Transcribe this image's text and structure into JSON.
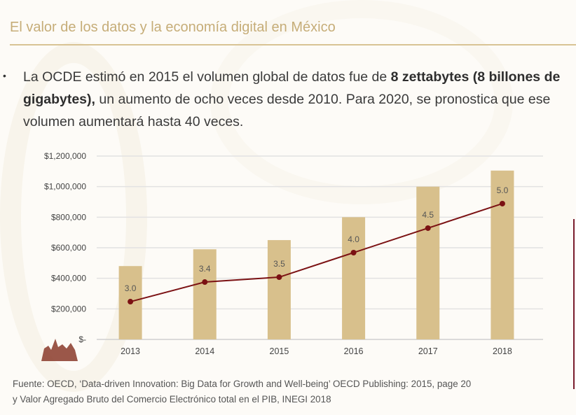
{
  "slide": {
    "title": "El valor de los datos y la economía digital en México",
    "body": {
      "part1": "La OCDE estimó en 2015 el volumen global de datos fue de ",
      "bold": "8 zettabytes (8 billones de gigabytes),",
      "part2": " un aumento de ocho veces desde 2010. Para 2020, se pronostica que ese volumen aumentará hasta 40 veces."
    },
    "source_line1": "Fuente: OECD, ‘Data-driven Innovation: Big Data for Growth and Well-being’ OECD Publishing: 2015, page 20",
    "source_line2": "y Valor Agregado Bruto del Comercio Electrónico total en el PIB, INEGI 2018"
  },
  "colors": {
    "bar": "#d8c08c",
    "line": "#7b1113",
    "title": "#c6ad78",
    "accent": "#7a1c2e"
  },
  "chart_data": {
    "type": "bar+line",
    "categories": [
      "2013",
      "2014",
      "2015",
      "2016",
      "2017",
      "2018"
    ],
    "series": [
      {
        "type": "bar",
        "values": [
          480000,
          590000,
          650000,
          800000,
          1000000,
          1105000
        ]
      },
      {
        "type": "line",
        "axis": "secondary",
        "values": [
          3.0,
          3.4,
          3.5,
          4.0,
          4.5,
          5.0
        ],
        "labels": [
          "3.0",
          "3.4",
          "3.5",
          "4.0",
          "4.5",
          "5.0"
        ]
      }
    ],
    "ylim": [
      0,
      1200000
    ],
    "yticks": [
      0,
      200000,
      400000,
      600000,
      800000,
      1000000,
      1200000
    ],
    "ytick_labels": [
      "$-",
      "$200,000",
      "$400,000",
      "$600,000",
      "$800,000",
      "$1,000,000",
      "$1,200,000"
    ],
    "grid": true,
    "title": "",
    "xlabel": "",
    "ylabel": ""
  }
}
